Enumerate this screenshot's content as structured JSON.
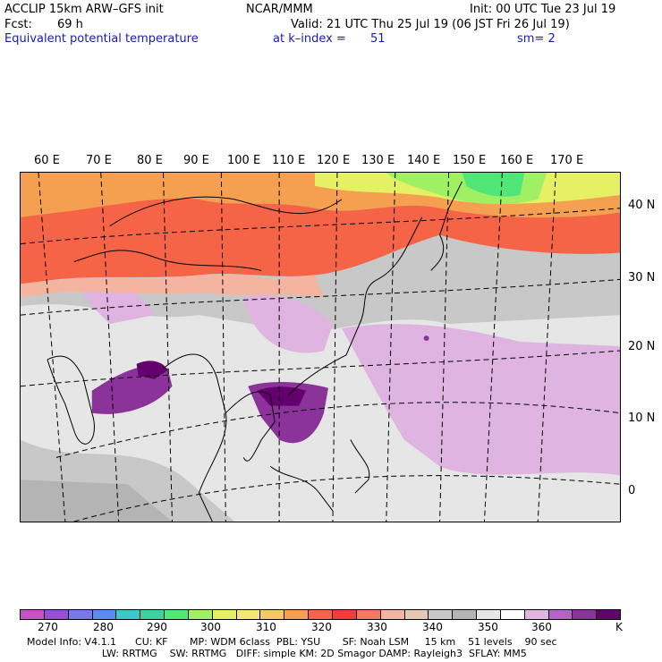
{
  "header": {
    "model": "ACCLIP 15km ARW–GFS init",
    "org": "NCAR/MMM",
    "init": "Init: 00 UTC Tue 23 Jul 19",
    "fcst_label": "Fcst:",
    "fcst_value": "69 h",
    "valid": "Valid: 21 UTC Thu 25 Jul 19 (06 JST Fri 26 Jul 19)",
    "field": "Equivalent potential temperature",
    "level": "at k–index =",
    "level_value": "51",
    "smooth": "sm= 2"
  },
  "map": {
    "lon_labels": [
      "60 E",
      "70 E",
      "80 E",
      "90 E",
      "100 E",
      "110 E",
      "120 E",
      "130 E",
      "140 E",
      "150 E",
      "160 E",
      "170 E"
    ],
    "lat_labels": [
      "40 N",
      "30 N",
      "20 N",
      "10 N",
      "0"
    ],
    "colors": {
      "land_border": "#000000",
      "grid_dash": "#000000"
    }
  },
  "colorbar": {
    "colors": [
      "#c850c8",
      "#9650d2",
      "#7878e6",
      "#5a8cf0",
      "#3cc8c8",
      "#3cd2a0",
      "#50e678",
      "#a0f064",
      "#e6f064",
      "#f5e678",
      "#f5c864",
      "#f5a050",
      "#f56446",
      "#f53c3c",
      "#f57864",
      "#f5b4a0",
      "#e6c8b4",
      "#c8c8c8",
      "#b4b4b4",
      "#e6e6e6",
      "#ffffff",
      "#e0b4e0",
      "#b464c8",
      "#8c329b",
      "#64006e"
    ],
    "tick_labels": [
      "270",
      "280",
      "290",
      "300",
      "310",
      "320",
      "330",
      "340",
      "350",
      "360"
    ],
    "unit": "K"
  },
  "footer": {
    "line1": "Model Info: V4.1.1      CU: KF       MP: WDM 6class  PBL: YSU       SF: Noah LSM     15 km    51 levels    90 sec",
    "line2": "                        LW: RRTMG    SW: RRTMG   DIFF: simple KM: 2D Smagor DAMP: Rayleigh3  SFLAY: MM5"
  }
}
